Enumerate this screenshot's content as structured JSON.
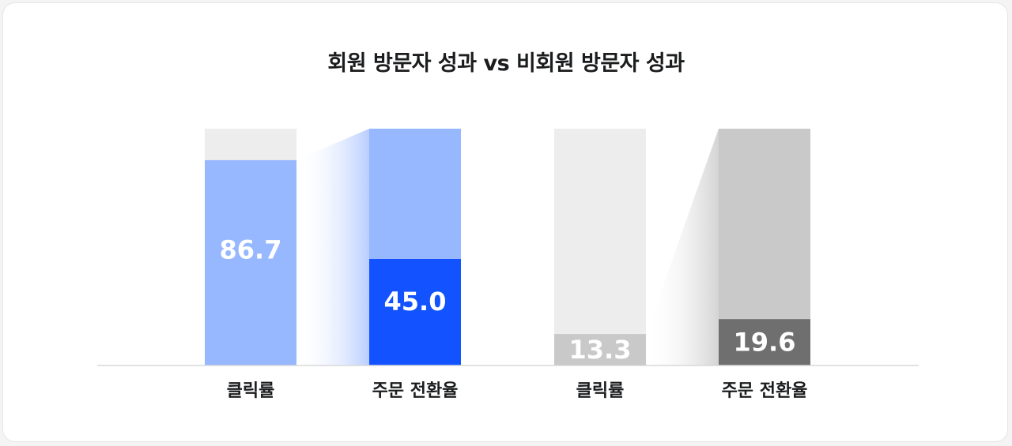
{
  "chart_data": {
    "type": "bar",
    "title": "회원 방문자 성과 vs 비회원 방문자 성과",
    "ylim": [
      0,
      100
    ],
    "grid": false,
    "groups": [
      {
        "bars": [
          {
            "category": "클릭률",
            "value": 86.7,
            "value_label": "86.7"
          },
          {
            "category": "주문 전환율",
            "value": 45.0,
            "value_label": "45.0"
          }
        ],
        "colors": {
          "track": "#ededed",
          "first": "#97b8ff",
          "second_track": "#97b8ff",
          "second": "#1252ff"
        }
      },
      {
        "bars": [
          {
            "category": "클릭률",
            "value": 13.3,
            "value_label": "13.3"
          },
          {
            "category": "주문 전환율",
            "value": 19.6,
            "value_label": "19.6"
          }
        ],
        "colors": {
          "track": "#ededed",
          "first": "#c9c9c9",
          "second_track": "#c9c9c9",
          "second": "#6f6f6f"
        }
      }
    ]
  }
}
